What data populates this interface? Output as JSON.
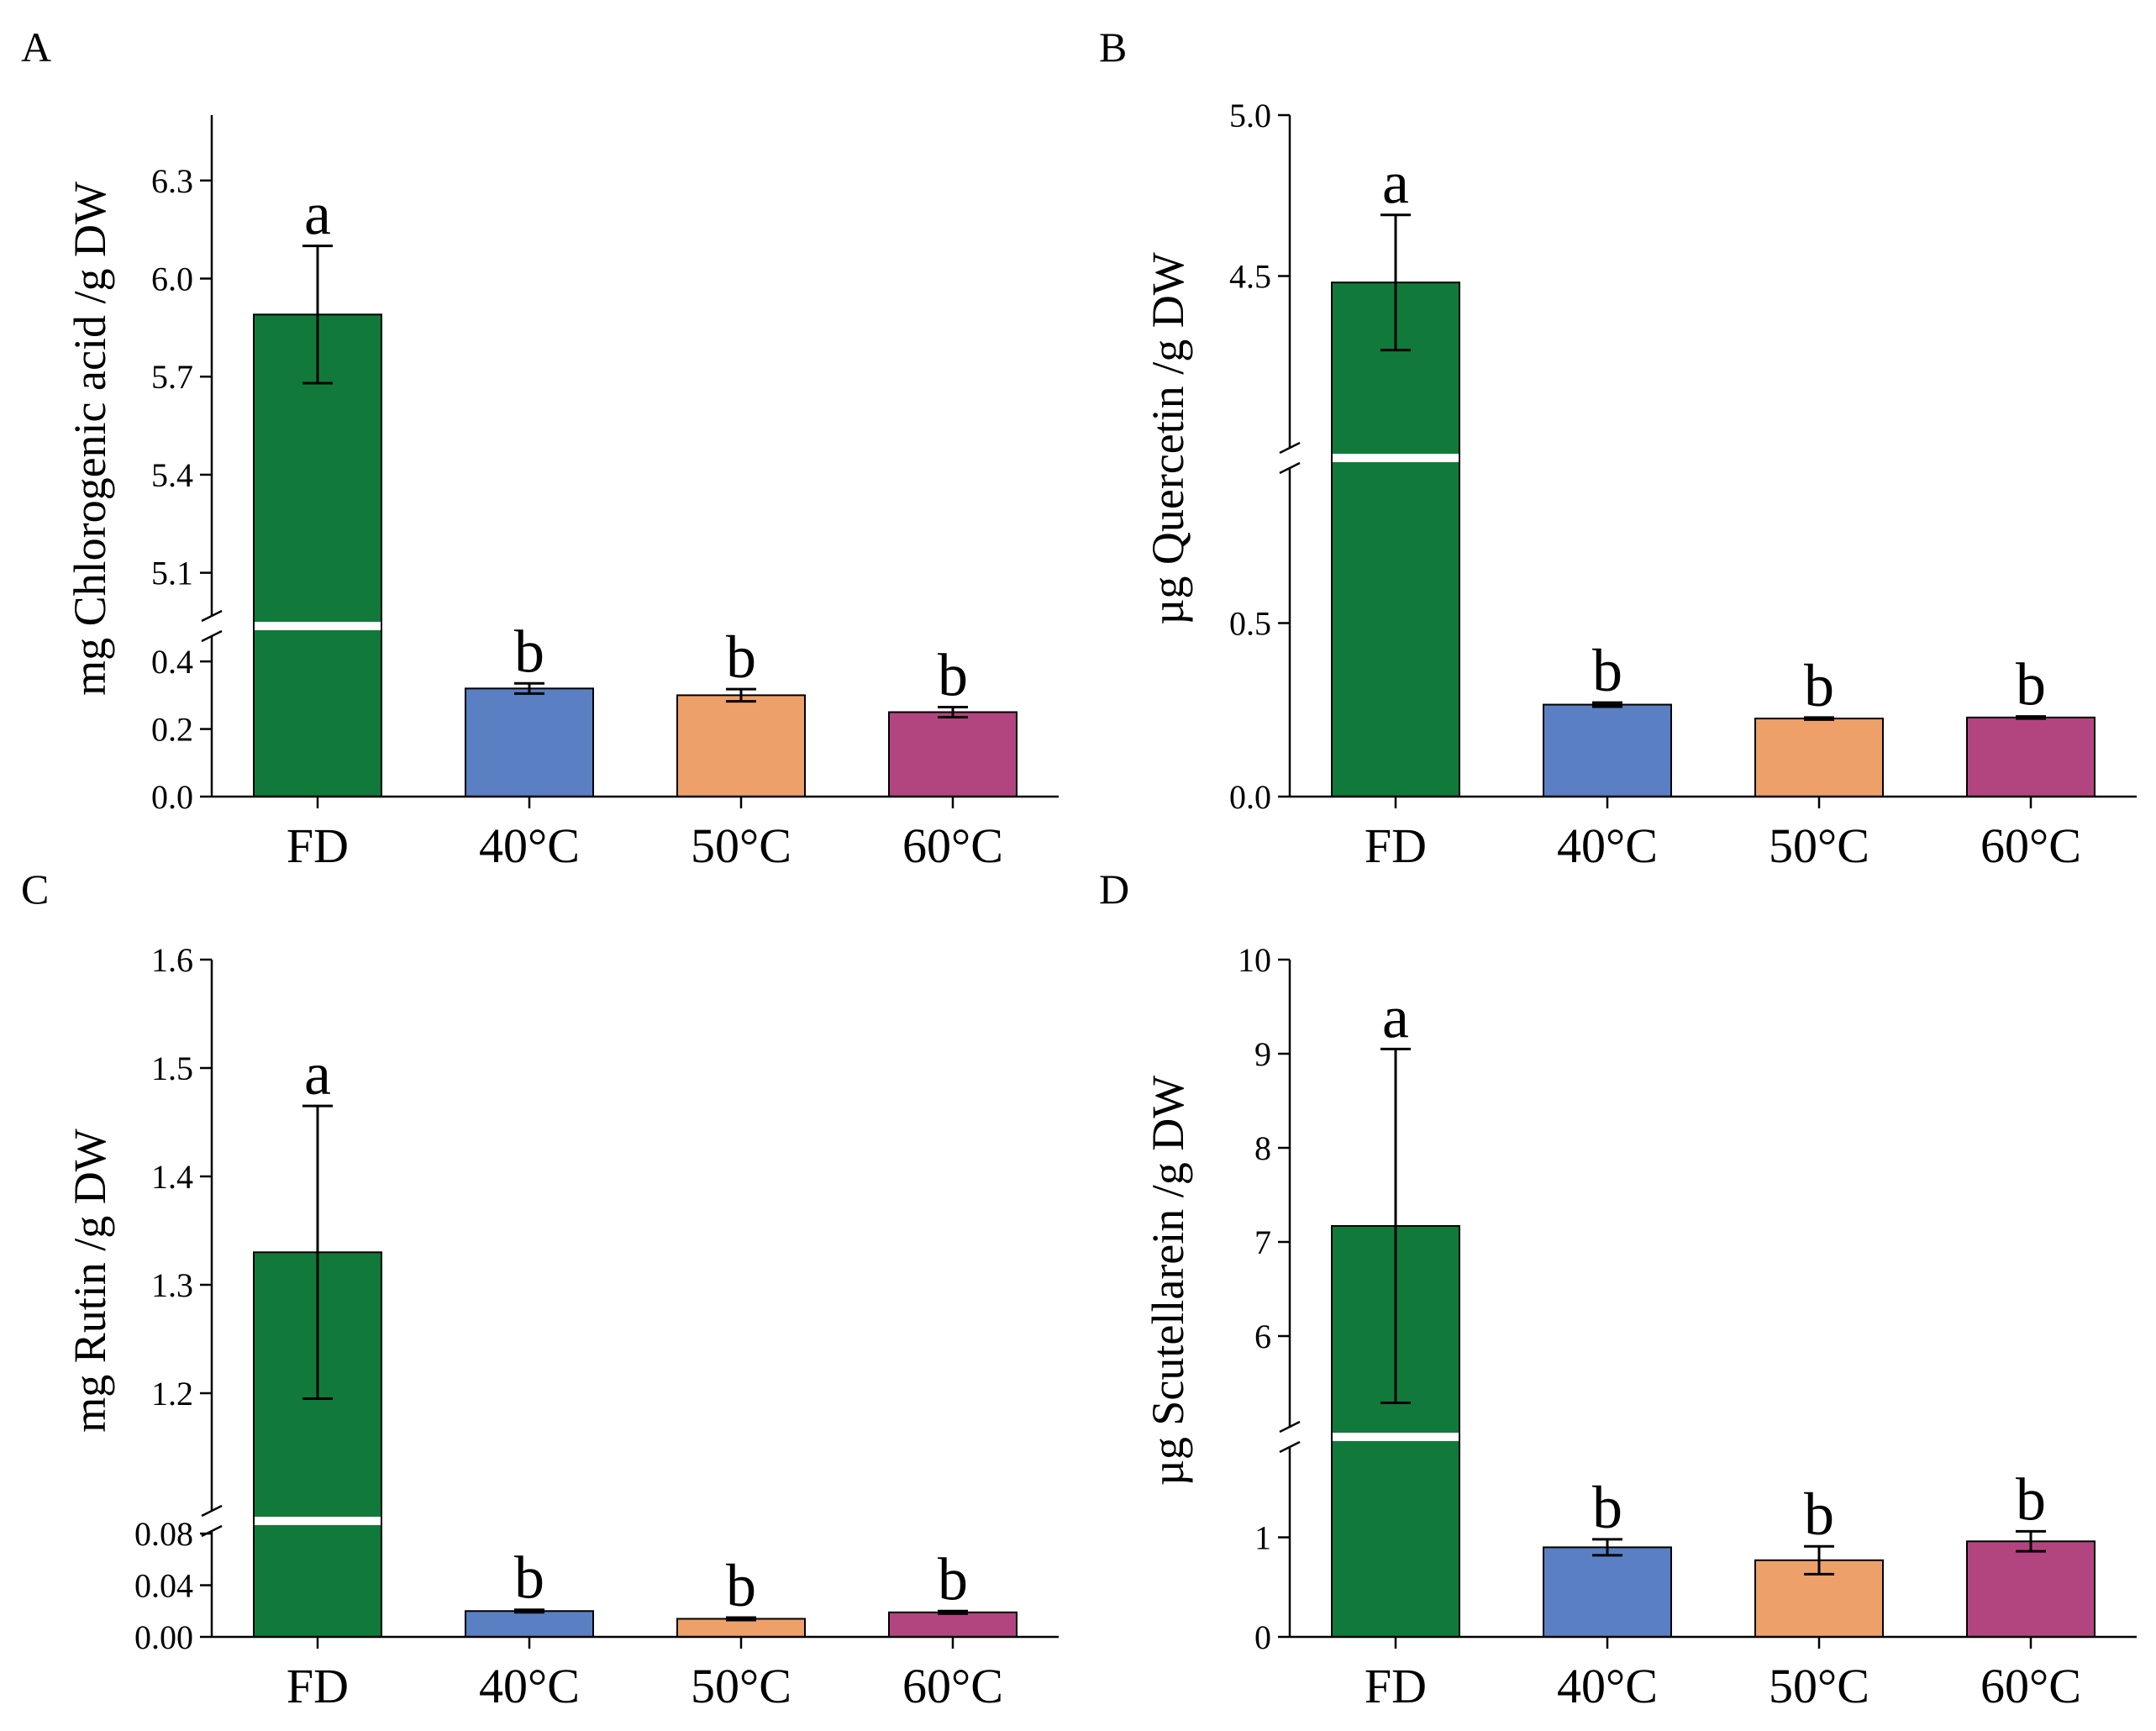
{
  "chart_data": [
    {
      "panel": "A",
      "type": "bar",
      "ylabel": "mg Chlorogenic acid  /g DW",
      "categories": [
        "FD",
        "40°C",
        "50°C",
        "60°C"
      ],
      "values": [
        5.89,
        0.32,
        0.3,
        0.25
      ],
      "errors": [
        0.21,
        0.015,
        0.018,
        0.015
      ],
      "letters": [
        "a",
        "b",
        "b",
        "b"
      ],
      "colors": [
        "#117a3a",
        "#5a7fc2",
        "#eda168",
        "#b2457f"
      ],
      "axis_break": true,
      "lower_range": [
        0,
        0.48
      ],
      "upper_range": [
        4.95,
        6.5
      ],
      "lower_ticks": [
        "0.0",
        "0.2",
        "0.4"
      ],
      "upper_ticks": [
        "5.1",
        "5.4",
        "5.7",
        "6.0",
        "6.3"
      ]
    },
    {
      "panel": "B",
      "type": "bar",
      "ylabel": "µg Quercetin /g DW",
      "categories": [
        "FD",
        "40°C",
        "50°C",
        "60°C"
      ],
      "values": [
        4.48,
        0.265,
        0.225,
        0.228
      ],
      "errors": [
        0.21,
        0.006,
        0.003,
        0.003
      ],
      "letters": [
        "a",
        "b",
        "b",
        "b"
      ],
      "colors": [
        "#117a3a",
        "#5a7fc2",
        "#eda168",
        "#b2457f"
      ],
      "axis_break": true,
      "lower_range": [
        0,
        1.0
      ],
      "upper_range": [
        4.0,
        5.0
      ],
      "lower_ticks": [
        "0.0",
        "0.5"
      ],
      "upper_ticks": [
        "4.5",
        "5.0"
      ]
    },
    {
      "panel": "C",
      "type": "bar",
      "ylabel": "mg Rutin /g DW",
      "categories": [
        "FD",
        "40°C",
        "50°C",
        "60°C"
      ],
      "values": [
        1.33,
        0.02,
        0.014,
        0.019
      ],
      "errors": [
        0.135,
        0.001,
        0.001,
        0.001
      ],
      "letters": [
        "a",
        "b",
        "b",
        "b"
      ],
      "colors": [
        "#117a3a",
        "#5a7fc2",
        "#eda168",
        "#b2457f"
      ],
      "axis_break": true,
      "lower_range": [
        0,
        0.095
      ],
      "upper_range": [
        1.1,
        1.6
      ],
      "lower_ticks": [
        "0.00",
        "0.04",
        "0.08"
      ],
      "upper_ticks": [
        "1.2",
        "1.3",
        "1.4",
        "1.5",
        "1.6"
      ]
    },
    {
      "panel": "D",
      "type": "bar",
      "ylabel": "µg Scutellarein /g DW",
      "categories": [
        "FD",
        "40°C",
        "50°C",
        "60°C"
      ],
      "values": [
        7.17,
        0.9,
        0.77,
        0.96
      ],
      "errors": [
        1.88,
        0.08,
        0.14,
        0.1
      ],
      "letters": [
        "a",
        "b",
        "b",
        "b"
      ],
      "colors": [
        "#117a3a",
        "#5a7fc2",
        "#eda168",
        "#b2457f"
      ],
      "axis_break": true,
      "lower_range": [
        0,
        1.95
      ],
      "upper_range": [
        5.0,
        10.0
      ],
      "lower_ticks": [
        "0",
        "1"
      ],
      "upper_ticks": [
        "6",
        "7",
        "8",
        "9",
        "10"
      ]
    }
  ]
}
